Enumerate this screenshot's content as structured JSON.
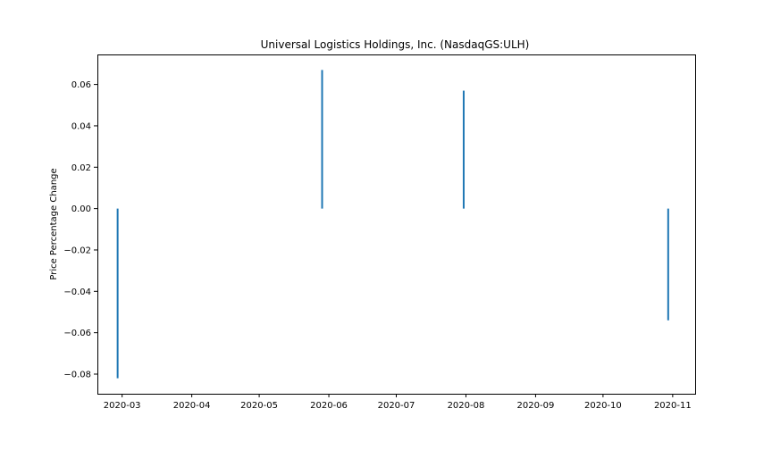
{
  "chart_data": {
    "type": "bar",
    "title": "Universal Logistics Holdings, Inc. (NasdaqGS:ULH)",
    "xlabel": "",
    "ylabel": "Price Percentage Change",
    "x_type": "date",
    "xlim": [
      "2020-02-19",
      "2020-11-11"
    ],
    "ylim": [
      -0.0895,
      0.0745
    ],
    "grid": false,
    "x_ticks": [
      "2020-03",
      "2020-04",
      "2020-05",
      "2020-06",
      "2020-07",
      "2020-08",
      "2020-09",
      "2020-10",
      "2020-11"
    ],
    "y_ticks": [
      -0.08,
      -0.06,
      -0.04,
      -0.02,
      0.0,
      0.02,
      0.04,
      0.06
    ],
    "y_tick_labels": [
      "−0.08",
      "−0.06",
      "−0.04",
      "−0.02",
      "0.00",
      "0.02",
      "0.04",
      "0.06"
    ],
    "color": "#1f77b4",
    "series": [
      {
        "x": [
          "2020-02-28",
          "2020-05-29",
          "2020-07-31",
          "2020-10-30"
        ],
        "values": [
          -0.082,
          0.067,
          0.057,
          -0.054
        ]
      }
    ]
  }
}
